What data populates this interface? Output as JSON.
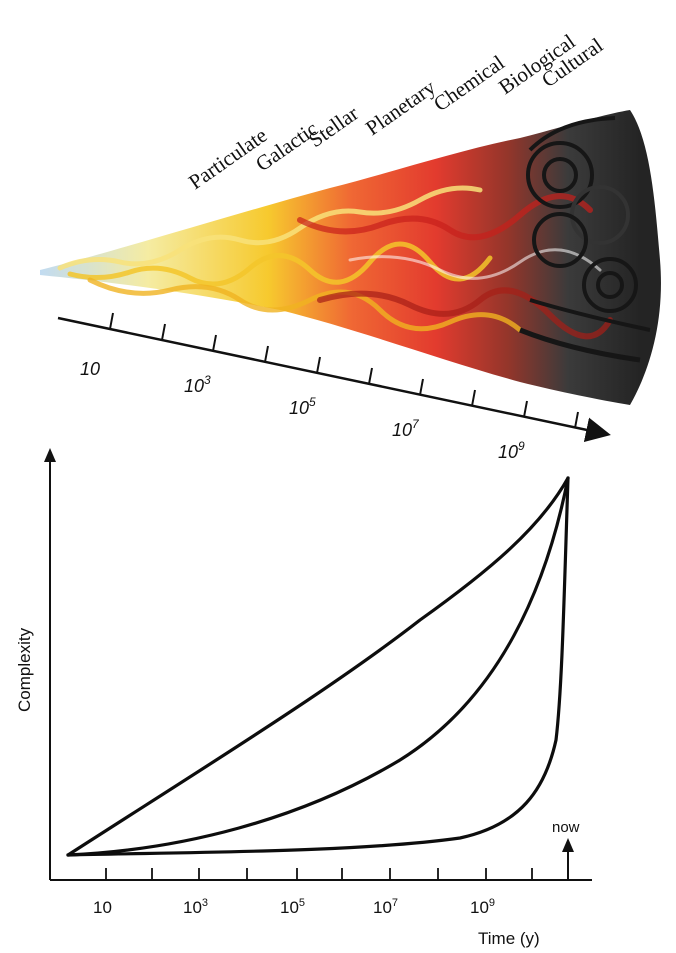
{
  "figure": {
    "timeline": {
      "eras": [
        "Particulate",
        "Galactic",
        "Stellar",
        "Planetary",
        "Chemical",
        "Biological",
        "Cultural"
      ],
      "tick_labels": [
        {
          "base": "10",
          "exp": ""
        },
        {
          "base": "10",
          "exp": "3"
        },
        {
          "base": "10",
          "exp": "5"
        },
        {
          "base": "10",
          "exp": "7"
        },
        {
          "base": "10",
          "exp": "9"
        }
      ],
      "palette": [
        "#9cc3e6",
        "#f7e36a",
        "#f5c21b",
        "#e8321e",
        "#c9221a",
        "#1a1a1a"
      ]
    },
    "chart": {
      "ylabel": "Complexity",
      "xlabel": "Time (y)",
      "now_label": "now",
      "tick_labels": [
        {
          "base": "10",
          "exp": ""
        },
        {
          "base": "10",
          "exp": "3"
        },
        {
          "base": "10",
          "exp": "5"
        },
        {
          "base": "10",
          "exp": "7"
        },
        {
          "base": "10",
          "exp": "9"
        }
      ],
      "curve_count": 3
    }
  }
}
